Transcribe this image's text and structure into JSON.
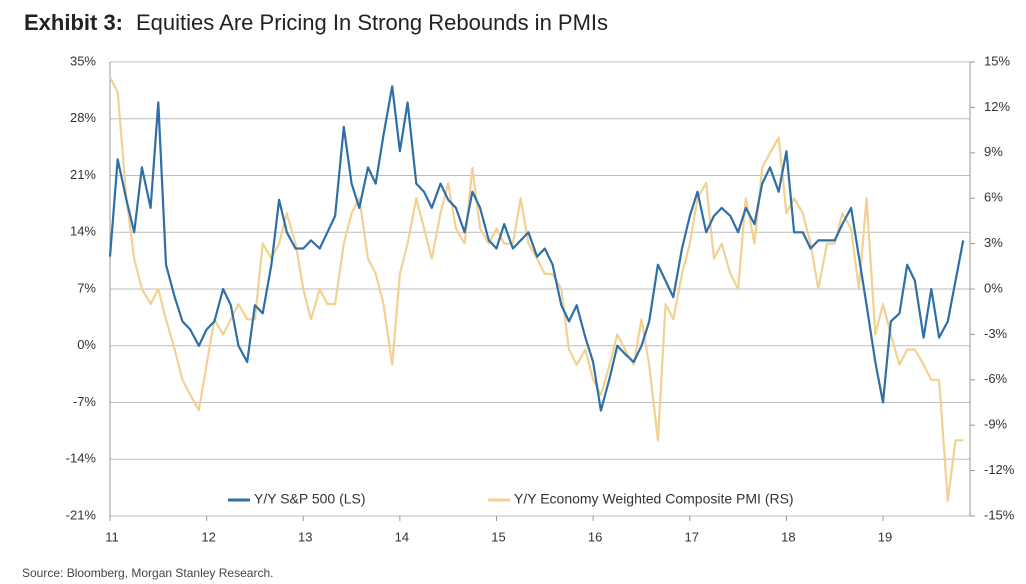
{
  "chart_data": {
    "type": "line",
    "title_label": "Exhibit 3:",
    "title": "Equities Are Pricing In Strong Rebounds in PMIs",
    "source": "Source: Bloomberg, Morgan Stanley Research.",
    "x": [
      2011,
      2011.08,
      2011.17,
      2011.25,
      2011.33,
      2011.42,
      2011.5,
      2011.58,
      2011.67,
      2011.75,
      2011.83,
      2011.92,
      2012,
      2012.08,
      2012.17,
      2012.25,
      2012.33,
      2012.42,
      2012.5,
      2012.58,
      2012.67,
      2012.75,
      2012.83,
      2012.92,
      2013,
      2013.08,
      2013.17,
      2013.25,
      2013.33,
      2013.42,
      2013.5,
      2013.58,
      2013.67,
      2013.75,
      2013.83,
      2013.92,
      2014,
      2014.08,
      2014.17,
      2014.25,
      2014.33,
      2014.42,
      2014.5,
      2014.58,
      2014.67,
      2014.75,
      2014.83,
      2014.92,
      2015,
      2015.08,
      2015.17,
      2015.25,
      2015.33,
      2015.42,
      2015.5,
      2015.58,
      2015.67,
      2015.75,
      2015.83,
      2015.92,
      2016,
      2016.08,
      2016.17,
      2016.25,
      2016.33,
      2016.42,
      2016.5,
      2016.58,
      2016.67,
      2016.75,
      2016.83,
      2016.92,
      2017,
      2017.08,
      2017.17,
      2017.25,
      2017.33,
      2017.42,
      2017.5,
      2017.58,
      2017.67,
      2017.75,
      2017.83,
      2017.92,
      2018,
      2018.08,
      2018.17,
      2018.25,
      2018.33,
      2018.42,
      2018.5,
      2018.58,
      2018.67,
      2018.75,
      2018.83,
      2018.92,
      2019,
      2019.08,
      2019.17,
      2019.25,
      2019.33,
      2019.42,
      2019.5,
      2019.58,
      2019.67,
      2019.75,
      2019.83
    ],
    "series": [
      {
        "name": "Y/Y S&P 500 (LS)",
        "color": "#2e6fa7",
        "axis": "y",
        "values": [
          11,
          23,
          18,
          14,
          22,
          17,
          30,
          10,
          6,
          3,
          2,
          0,
          2,
          3,
          7,
          5,
          0,
          -2,
          5,
          4,
          10,
          18,
          14,
          12,
          12,
          13,
          12,
          14,
          16,
          27,
          20,
          17,
          22,
          20,
          26,
          32,
          24,
          30,
          20,
          19,
          17,
          20,
          18,
          17,
          14,
          19,
          17,
          13,
          12,
          15,
          12,
          13,
          14,
          11,
          12,
          10,
          5,
          3,
          5,
          1,
          -2,
          -8,
          -4,
          0,
          -1,
          -2,
          0,
          3,
          10,
          8,
          6,
          12,
          16,
          19,
          14,
          16,
          17,
          16,
          14,
          17,
          15,
          20,
          22,
          19,
          24,
          14,
          14,
          12,
          13,
          13,
          13,
          15,
          17,
          11,
          5,
          -2,
          -7,
          3,
          4,
          10,
          8,
          1,
          7,
          1,
          3,
          8,
          13
        ]
      },
      {
        "name": "Y/Y Economy Weighted Composite PMI (RS)",
        "color": "#f2d193",
        "axis": "y2",
        "values": [
          14,
          13,
          6,
          2,
          0,
          -1,
          0,
          -2,
          -4,
          -6,
          -7,
          -8,
          -5,
          -2,
          -3,
          -2,
          -1,
          -2,
          -2,
          3,
          2,
          3,
          5,
          3,
          0,
          -2,
          0,
          -1,
          -1,
          3,
          5,
          6,
          2,
          1,
          -1,
          -5,
          1,
          3,
          6,
          4,
          2,
          5,
          7,
          4,
          3,
          8,
          4,
          3,
          4,
          3,
          3,
          6,
          3,
          2,
          1,
          1,
          0,
          -4,
          -5,
          -4,
          -6,
          -7,
          -5,
          -3,
          -4,
          -5,
          -2,
          -5,
          -10,
          -1,
          -2,
          1,
          3,
          6,
          7,
          2,
          3,
          1,
          0,
          6,
          3,
          8,
          9,
          10,
          5,
          6,
          5,
          3,
          0,
          3,
          3,
          5,
          4,
          0,
          6,
          -3,
          -1,
          -3,
          -5,
          -4,
          -4,
          -5,
          -6,
          -6,
          -14,
          -10,
          -10
        ]
      }
    ],
    "xlim": [
      2011,
      2019.9
    ],
    "xticks": [
      {
        "value": 2011,
        "label": "11"
      },
      {
        "value": 2012,
        "label": "12"
      },
      {
        "value": 2013,
        "label": "13"
      },
      {
        "value": 2014,
        "label": "14"
      },
      {
        "value": 2015,
        "label": "15"
      },
      {
        "value": 2016,
        "label": "16"
      },
      {
        "value": 2017,
        "label": "17"
      },
      {
        "value": 2018,
        "label": "18"
      },
      {
        "value": 2019,
        "label": "19"
      }
    ],
    "ylim": [
      -21,
      35
    ],
    "yticks": [
      {
        "value": 35,
        "label": "35%"
      },
      {
        "value": 28,
        "label": "28%"
      },
      {
        "value": 21,
        "label": "21%"
      },
      {
        "value": 14,
        "label": "14%"
      },
      {
        "value": 7,
        "label": "7%"
      },
      {
        "value": 0,
        "label": "0%"
      },
      {
        "value": -7,
        "label": "-7%"
      },
      {
        "value": -14,
        "label": "-14%"
      },
      {
        "value": -21,
        "label": "-21%"
      }
    ],
    "y2lim": [
      -15,
      15
    ],
    "y2ticks": [
      {
        "value": 15,
        "label": "15%"
      },
      {
        "value": 12,
        "label": "12%"
      },
      {
        "value": 9,
        "label": "9%"
      },
      {
        "value": 6,
        "label": "6%"
      },
      {
        "value": 3,
        "label": "3%"
      },
      {
        "value": 0,
        "label": "0%"
      },
      {
        "value": -3,
        "label": "-3%"
      },
      {
        "value": -6,
        "label": "-6%"
      },
      {
        "value": -9,
        "label": "-9%"
      },
      {
        "value": -12,
        "label": "-12%"
      },
      {
        "value": -15,
        "label": "-15%"
      }
    ],
    "grid": true,
    "legend": "bottom"
  }
}
